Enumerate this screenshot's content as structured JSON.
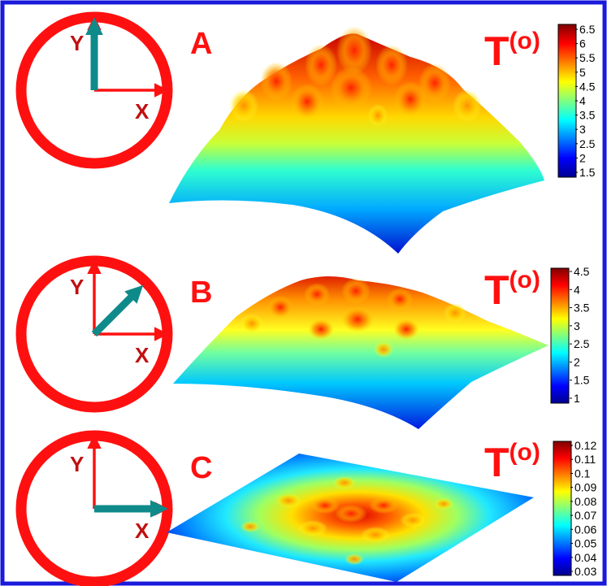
{
  "figure": {
    "colors": {
      "border": "#1a1adb",
      "ring": "#ff1010",
      "arrow": "#0f8a8a",
      "labels": "#ff1010",
      "axis_text": "#c01010"
    },
    "axis_labels": {
      "x": "X",
      "y": "Y"
    },
    "panels": [
      {
        "id": "A",
        "letter": "A",
        "arrow_angle_deg": 90,
        "title_main": "T",
        "title_sup": "(o)",
        "colorbar": {
          "ticks": [
            "6.5",
            "6",
            "5.5",
            "5",
            "4.5",
            "4",
            "3.5",
            "3",
            "2.5",
            "2",
            "1.5"
          ]
        }
      },
      {
        "id": "B",
        "letter": "B",
        "arrow_angle_deg": 45,
        "title_main": "T",
        "title_sup": "(o)",
        "colorbar": {
          "ticks": [
            "4.5",
            "4",
            "3.5",
            "3",
            "2.5",
            "2",
            "1.5",
            "1"
          ]
        }
      },
      {
        "id": "C",
        "letter": "C",
        "arrow_angle_deg": 0,
        "title_main": "T",
        "title_sup": "(o)",
        "colorbar": {
          "ticks": [
            "0.12",
            "0.11",
            "0.1",
            "0.09",
            "0.08",
            "0.07",
            "0.06",
            "0.05",
            "0.04",
            "0.03"
          ]
        }
      }
    ]
  }
}
